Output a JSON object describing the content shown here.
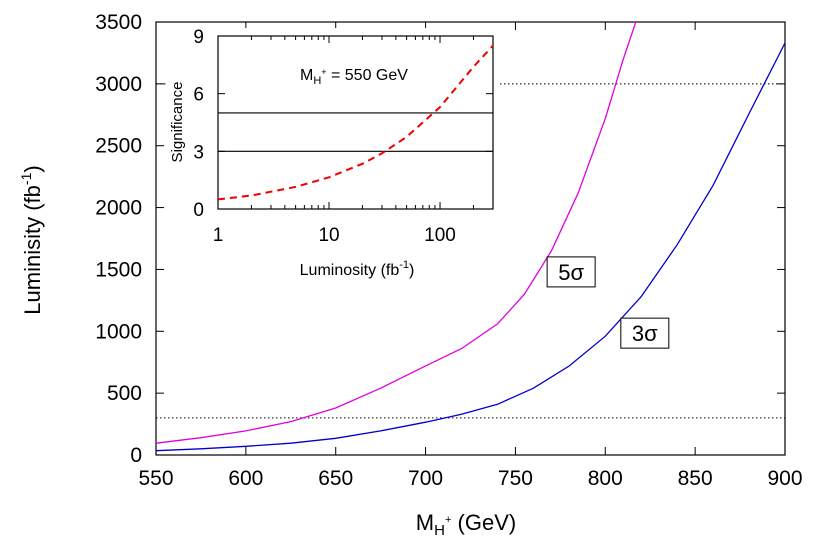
{
  "chart_data": [
    {
      "type": "line",
      "title": "",
      "xlabel_main": "M",
      "xlabel_sub": "H",
      "xlabel_sup": "+",
      "xlabel_unit": " (GeV)",
      "ylabel_main": "Luminisity (fb",
      "ylabel_sup": "-1",
      "ylabel_close": ")",
      "xlim": [
        550,
        900
      ],
      "ylim": [
        0,
        3500
      ],
      "xticks": [
        550,
        600,
        650,
        700,
        750,
        800,
        850,
        900
      ],
      "yticks": [
        0,
        500,
        1000,
        1500,
        2000,
        2500,
        3000,
        3500
      ],
      "grid": false,
      "series": [
        {
          "name": "5σ",
          "color": "#e000e0",
          "x": [
            550,
            575,
            600,
            625,
            650,
            675,
            700,
            720,
            740,
            755,
            770,
            785,
            800,
            810,
            817
          ],
          "y": [
            95,
            140,
            195,
            270,
            380,
            540,
            720,
            860,
            1060,
            1300,
            1650,
            2120,
            2720,
            3200,
            3500
          ]
        },
        {
          "name": "3σ",
          "color": "#0000cc",
          "x": [
            550,
            575,
            600,
            625,
            650,
            675,
            700,
            720,
            740,
            760,
            780,
            800,
            820,
            840,
            860,
            880,
            900
          ],
          "y": [
            35,
            50,
            70,
            95,
            135,
            195,
            265,
            330,
            410,
            540,
            720,
            960,
            1280,
            1700,
            2180,
            2760,
            3330
          ]
        }
      ],
      "reference_lines": [
        {
          "y": 300,
          "style": "dotted"
        },
        {
          "y": 3000,
          "style": "dotted"
        }
      ],
      "annotations": [
        {
          "text": "5σ",
          "x": 781,
          "y": 1480
        },
        {
          "text": "3σ",
          "x": 822,
          "y": 985
        }
      ]
    },
    {
      "type": "line",
      "title_main": "M",
      "title_sub": "H",
      "title_sup": "+",
      "title_rest": " = 550 GeV",
      "xlabel_main": "Luminosity (fb",
      "xlabel_sup": "-1",
      "xlabel_close": ")",
      "ylabel": "Significance",
      "xscale": "log",
      "xlim": [
        1,
        300
      ],
      "ylim": [
        0,
        9
      ],
      "xticks": [
        1,
        10,
        100
      ],
      "yticks": [
        0,
        3,
        6,
        9
      ],
      "grid": false,
      "series": [
        {
          "name": "",
          "color": "#ee0000",
          "style": "dashed",
          "x": [
            1,
            2,
            3,
            5,
            10,
            20,
            30,
            50,
            100,
            200,
            300
          ],
          "y": [
            0.5,
            0.7,
            0.9,
            1.15,
            1.65,
            2.35,
            2.9,
            3.75,
            5.3,
            7.4,
            8.5
          ]
        }
      ],
      "reference_lines": [
        {
          "y": 3,
          "style": "solid"
        },
        {
          "y": 5,
          "style": "solid"
        }
      ]
    }
  ]
}
